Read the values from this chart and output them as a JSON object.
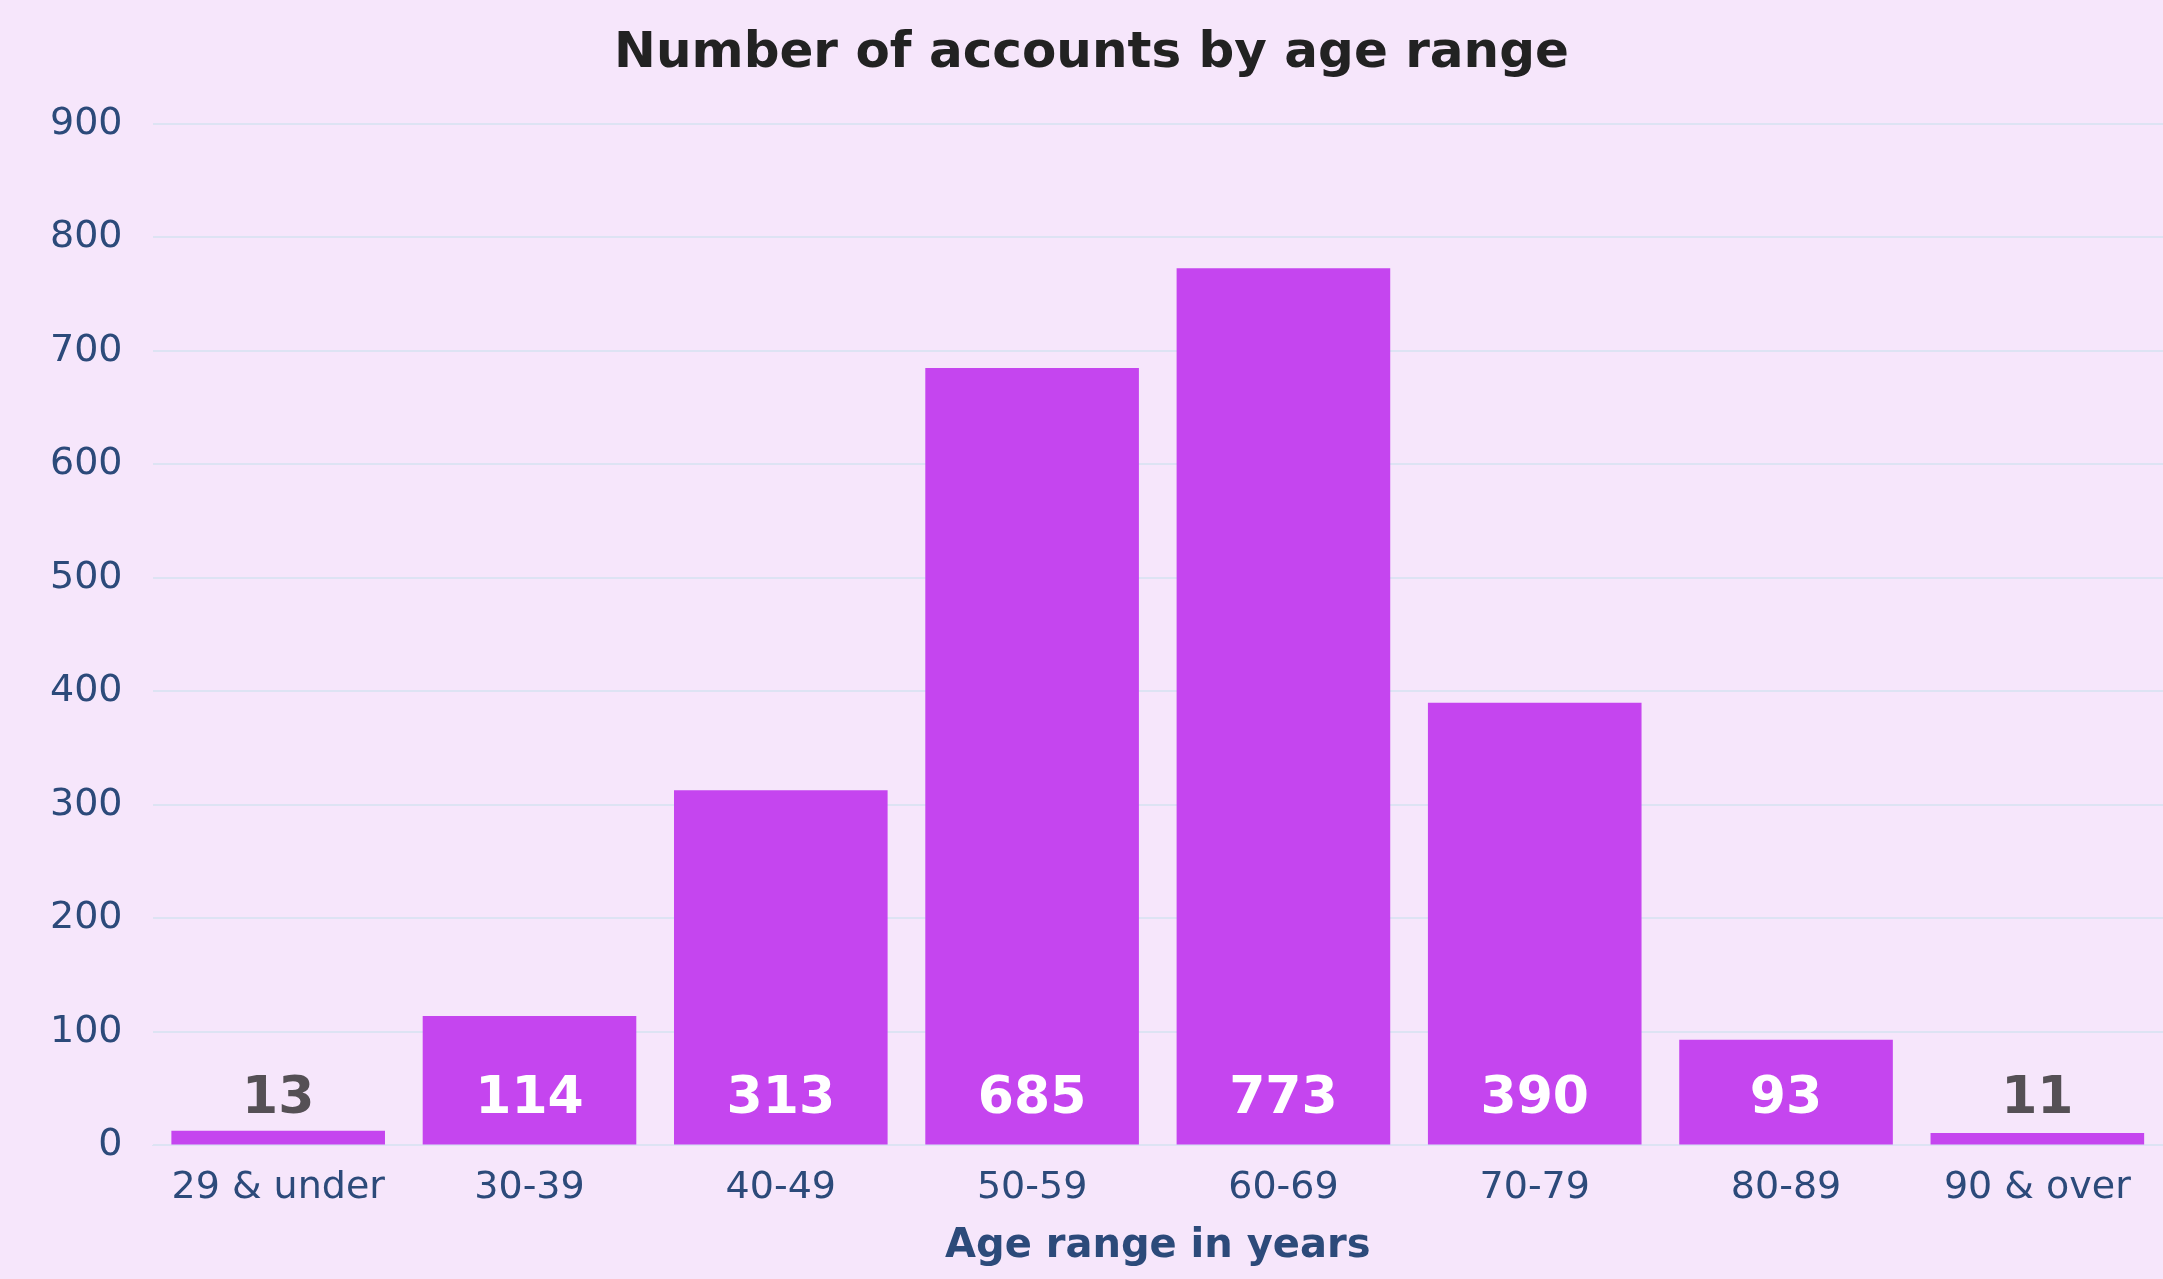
{
  "chart_data": {
    "type": "bar",
    "title": "Number of accounts by age range",
    "xlabel": "Age range in years",
    "categories": [
      "29 & under",
      "30-39",
      "40-49",
      "50-59",
      "60-69",
      "70-79",
      "80-89",
      "90 & over"
    ],
    "values": [
      13,
      114,
      313,
      685,
      773,
      390,
      93,
      11
    ],
    "color": "#c545ef",
    "ylim": [
      0,
      900
    ],
    "yticks": [
      0,
      100,
      200,
      300,
      400,
      500,
      600,
      700,
      800,
      900
    ],
    "grid": "y",
    "legend": false,
    "data_labels": true
  }
}
